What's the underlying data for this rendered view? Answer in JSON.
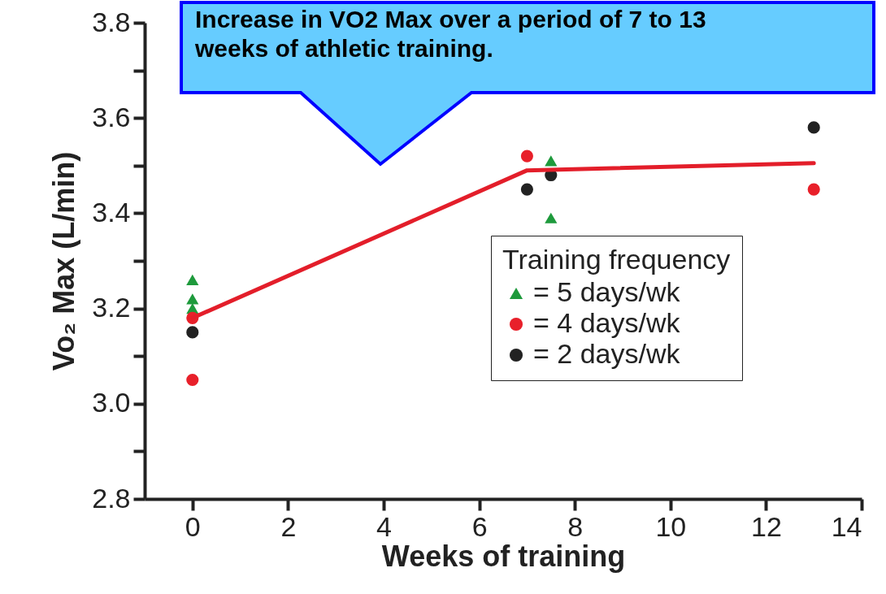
{
  "chart_data": {
    "type": "scatter",
    "xlabel": "Weeks of training",
    "ylabel": "Vo₂ Max (L/min)",
    "legend_title": "Training frequency",
    "annotations": [
      "Increase in VO2 Max over a period of 7 to 13 weeks of athletic training."
    ],
    "xlim": [
      -1,
      14
    ],
    "xticks": [
      0,
      2,
      4,
      6,
      8,
      10,
      12,
      14
    ],
    "ylim": [
      2.8,
      3.8
    ],
    "yticks": [
      {
        "value": 2.8,
        "label": "2.8"
      },
      {
        "value": 2.9,
        "label": null
      },
      {
        "value": 3.0,
        "label": "3.0"
      },
      {
        "value": 3.1,
        "label": null
      },
      {
        "value": 3.2,
        "label": "3.2"
      },
      {
        "value": 3.3,
        "label": null
      },
      {
        "value": 3.4,
        "label": "3.4"
      },
      {
        "value": 3.5,
        "label": null
      },
      {
        "value": 3.6,
        "label": "3.6"
      },
      {
        "value": 3.7,
        "label": null
      },
      {
        "value": 3.8,
        "label": "3.8"
      }
    ],
    "grid": false,
    "legend": "right",
    "series": [
      {
        "name": "= 5 days/wk",
        "color": "#1e9a3c",
        "marker": "triangle",
        "x": [
          0,
          0,
          0,
          7.5,
          7.5
        ],
        "values": [
          3.26,
          3.22,
          3.2,
          3.51,
          3.39
        ]
      },
      {
        "name": "= 4 days/wk",
        "color": "#e8202a",
        "marker": "circle",
        "x": [
          0,
          0,
          7,
          13
        ],
        "values": [
          3.18,
          3.05,
          3.52,
          3.45
        ]
      },
      {
        "name": "= 2 days/wk",
        "color": "#222222",
        "marker": "circle",
        "x": [
          0,
          7,
          7.5,
          13
        ],
        "values": [
          3.15,
          3.45,
          3.48,
          3.58
        ]
      },
      {
        "type": "line",
        "color": "#e31e2a",
        "marker": "none",
        "line_style": "solid",
        "x": [
          0,
          7,
          13
        ],
        "values": [
          3.18,
          3.49,
          3.505
        ]
      }
    ]
  }
}
